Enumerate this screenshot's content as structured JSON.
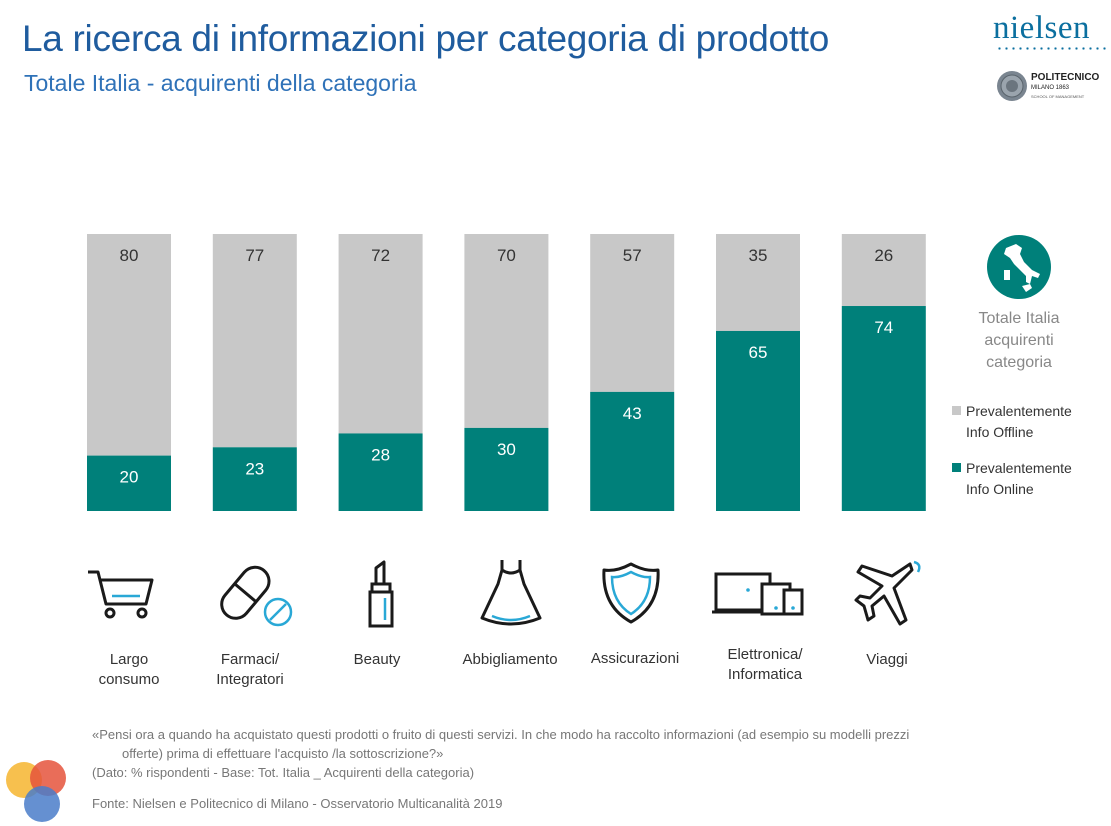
{
  "header": {
    "title": "La ricerca di informazioni per categoria di prodotto",
    "subtitle": "Totale Italia - acquirenti della categoria"
  },
  "logos": {
    "nielsen": "nielsen",
    "politecnico_name": "POLITECNICO",
    "politecnico_city": "MILANO 1863",
    "politecnico_school": "SCHOOL OF MANAGEMENT"
  },
  "chart_data": {
    "type": "bar",
    "stacked": true,
    "categories": [
      "Largo consumo",
      "Farmaci/ Integratori",
      "Beauty",
      "Abbigliamento",
      "Assicurazioni",
      "Elettronica/ Informatica",
      "Viaggi"
    ],
    "category_lines": [
      [
        "Largo",
        "consumo"
      ],
      [
        "Farmaci/",
        "Integratori"
      ],
      [
        "Beauty"
      ],
      [
        "Abbigliamento"
      ],
      [
        "Assicurazioni"
      ],
      [
        "Elettronica/",
        "Informatica"
      ],
      [
        "Viaggi"
      ]
    ],
    "icons": [
      "cart-icon",
      "pill-icon",
      "lipstick-icon",
      "dress-icon",
      "shield-icon",
      "devices-icon",
      "airplane-icon"
    ],
    "series": [
      {
        "name": "Prevalentemente Info Online",
        "color": "#00807a",
        "values": [
          20,
          23,
          28,
          30,
          43,
          65,
          74
        ]
      },
      {
        "name": "Prevalentemente Info Offline",
        "color": "#c8c8c8",
        "values": [
          80,
          77,
          72,
          70,
          57,
          35,
          26
        ]
      }
    ],
    "ylim": [
      0,
      100
    ],
    "grid": false,
    "legend_position": "right"
  },
  "sidebar": {
    "icon": "italy-map-icon",
    "title_lines": [
      "Totale Italia",
      "acquirenti",
      "categoria"
    ],
    "legend": [
      {
        "lines": [
          "Prevalentemente",
          "Info Offline"
        ],
        "color": "#c8c8c8"
      },
      {
        "lines": [
          "Prevalentemente",
          "Info Online"
        ],
        "color": "#00807a"
      }
    ]
  },
  "footer": {
    "question_line1": "«Pensi ora a quando ha acquistato questi prodotti o fruito di questi servizi. In che modo ha raccolto informazioni (ad esempio su modelli prezzi",
    "question_line2": "offerte) prima di effettuare l'acquisto /la sottoscrizione?»",
    "data_note": "(Dato: % rispondenti - Base: Tot. Italia _ Acquirenti della categoria)",
    "source": "Fonte: Nielsen e Politecnico di Milano - Osservatorio Multicanalità 2019"
  }
}
